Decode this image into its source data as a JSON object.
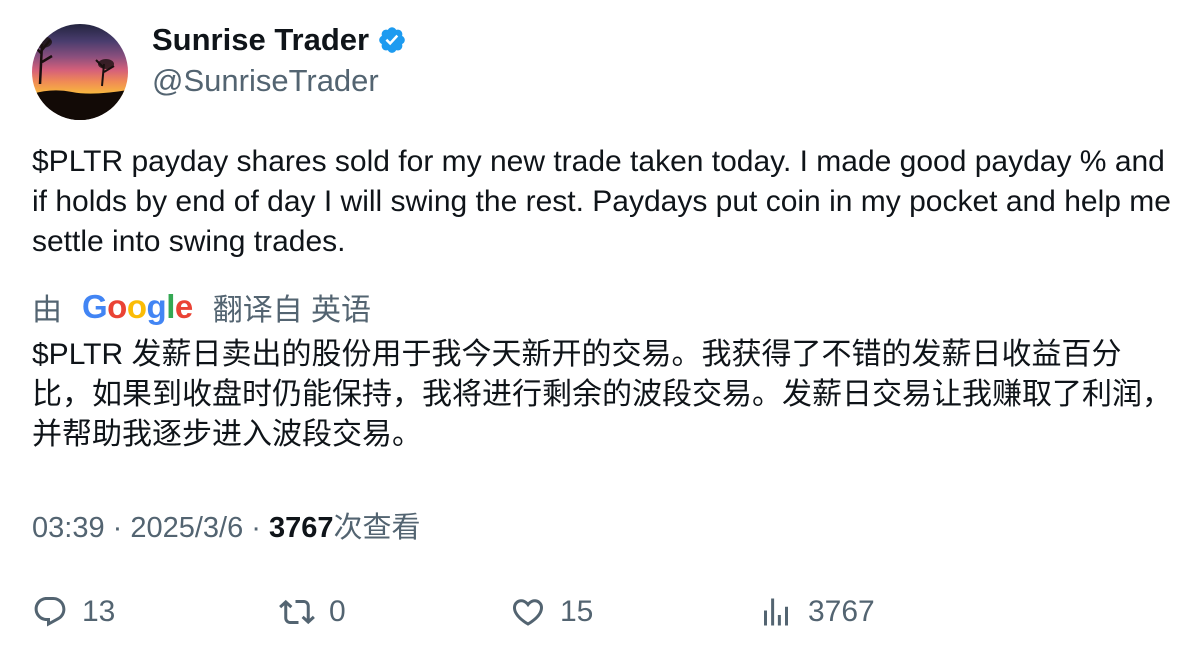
{
  "author": {
    "name": "Sunrise Trader",
    "handle": "@SunriseTrader",
    "verified_icon": "verified-badge-icon",
    "avatar_icon": "sunset-avatar"
  },
  "tweet": {
    "text": "$PLTR payday shares sold for my new trade taken today.  I made good payday % and if holds by end of day I will swing the rest.  Paydays put coin in my pocket and help me settle into swing trades."
  },
  "translation": {
    "prefix": "由",
    "provider": "Google",
    "suffix": "翻译自 英语",
    "text": "$PLTR 发薪日卖出的股份用于我今天新开的交易。我获得了不错的发薪日收益百分比，如果到收盘时仍能保持，我将进行剩余的波段交易。发薪日交易让我赚取了利润，并帮助我逐步进入波段交易。"
  },
  "meta": {
    "time": "03:39",
    "separator": " · ",
    "date": "2025/3/6",
    "views_count": "3767",
    "views_label": "次查看"
  },
  "actions": {
    "reply": "13",
    "retweet": "0",
    "like": "15",
    "views": "3767"
  },
  "colors": {
    "text": "#0f1419",
    "secondary": "#536471",
    "verified": "#1d9bf0"
  }
}
